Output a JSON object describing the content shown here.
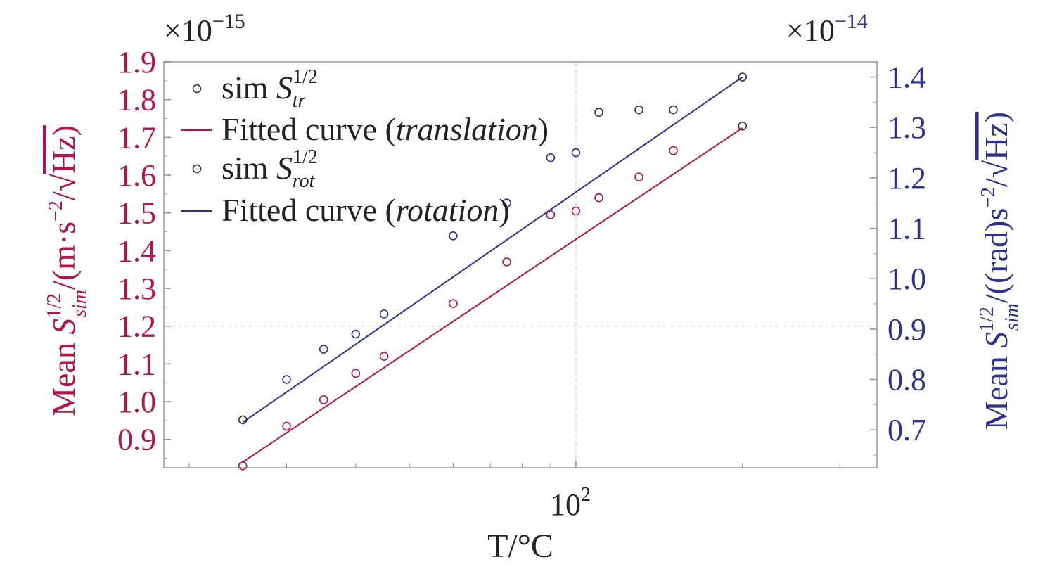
{
  "chart_data": {
    "type": "scatter",
    "xscale": "log",
    "xlim": [
      18,
      350
    ],
    "xlabel": "T/°C",
    "x_ticks": [
      100
    ],
    "x_tick_labels": [
      "10",
      "2"
    ],
    "left_axis": {
      "label_parts": [
        "Mean ",
        "S",
        "1/2",
        "sim",
        "/(m·s",
        "−2",
        "/√",
        "Hz)"
      ],
      "multiplier": [
        "×10",
        "−15"
      ],
      "ylim": [
        0.825,
        1.9
      ],
      "ticks": [
        0.9,
        1.0,
        1.1,
        1.2,
        1.3,
        1.4,
        1.5,
        1.6,
        1.7,
        1.8,
        1.9
      ],
      "tick_labels": [
        "0.9",
        "1.0",
        "1.1",
        "1.2",
        "1.3",
        "1.4",
        "1.5",
        "1.6",
        "1.7",
        "1.8",
        "1.9"
      ],
      "color": "#b5144a"
    },
    "right_axis": {
      "label_parts": [
        "Mean ",
        "S",
        "1/2",
        "sim",
        "/((rad)s",
        "−2",
        "/√",
        "Hz)"
      ],
      "multiplier": [
        "×10",
        "−14"
      ],
      "ylim": [
        0.625,
        1.43
      ],
      "ticks": [
        0.7,
        0.8,
        0.9,
        1.0,
        1.1,
        1.2,
        1.3,
        1.4
      ],
      "tick_labels": [
        "0.7",
        "0.8",
        "0.9",
        "1.0",
        "1.1",
        "1.2",
        "1.3",
        "1.4"
      ],
      "color": "#2e3192"
    },
    "grid": {
      "x": [
        100
      ],
      "y_left": [
        1.2
      ]
    },
    "legend": {
      "placement": "top-left",
      "entries": [
        {
          "kind": "marker",
          "color": "#333333",
          "prefix": "sim ",
          "sym": "S",
          "sup": "1/2",
          "sub": "tr"
        },
        {
          "kind": "line",
          "color": "#b5144a",
          "label": "Fitted curve (",
          "label_italic": "translation",
          "label_end": ")"
        },
        {
          "kind": "marker",
          "color": "#333333",
          "prefix": "sim ",
          "sym": "S",
          "sup": "1/2",
          "sub": "rot"
        },
        {
          "kind": "line",
          "color": "#2e3192",
          "label": "Fitted curve (",
          "label_italic": "rotation",
          "label_end": ")"
        }
      ]
    },
    "series": [
      {
        "axis": "left",
        "color": "#b5144a",
        "marker": "circle",
        "x": [
          25,
          30,
          35,
          40,
          45,
          60,
          75,
          90,
          100,
          110,
          130,
          150,
          200
        ],
        "y": [
          0.83,
          0.935,
          1.005,
          1.075,
          1.12,
          1.26,
          1.37,
          1.495,
          1.505,
          1.54,
          1.595,
          1.665,
          1.73
        ],
        "marker_colors": [
          "#b5144a",
          "#b5144a",
          "#b5144a",
          "#b5144a",
          "#b5144a",
          "#b5144a",
          "#b5144a",
          "#b5144a",
          "#b5144a",
          "#b5144a",
          "#b5144a",
          "#b5144a",
          "#333333"
        ]
      },
      {
        "axis": "right",
        "color": "#2e3192",
        "marker": "circle",
        "x": [
          25,
          30,
          35,
          40,
          45,
          60,
          75,
          90,
          100,
          110,
          130,
          150,
          200
        ],
        "y": [
          0.72,
          0.8,
          0.86,
          0.89,
          0.93,
          1.085,
          1.15,
          1.24,
          1.25,
          1.33,
          1.335,
          1.335,
          1.4
        ],
        "marker_colors": [
          "#333333",
          "#2e3192",
          "#2e3192",
          "#2e3192",
          "#2e3192",
          "#2e3192",
          "#2e3192",
          "#2e3192",
          "#2e3192",
          "#333333",
          "#333333",
          "#333333",
          "#333333"
        ]
      }
    ],
    "fits": [
      {
        "axis": "left",
        "color": "#b5144a",
        "x": [
          25,
          200
        ],
        "y": [
          0.84,
          1.725
        ]
      },
      {
        "axis": "right",
        "color": "#2e3192",
        "x": [
          25,
          200
        ],
        "y": [
          0.715,
          1.4
        ]
      }
    ]
  }
}
